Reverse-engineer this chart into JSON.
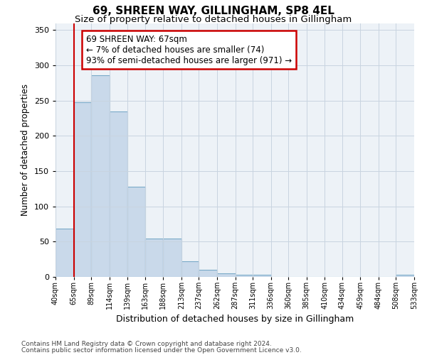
{
  "title1": "69, SHREEN WAY, GILLINGHAM, SP8 4EL",
  "title2": "Size of property relative to detached houses in Gillingham",
  "xlabel": "Distribution of detached houses by size in Gillingham",
  "ylabel": "Number of detached properties",
  "footnote1": "Contains HM Land Registry data © Crown copyright and database right 2024.",
  "footnote2": "Contains public sector information licensed under the Open Government Licence v3.0.",
  "bin_edges": [
    40,
    65,
    89,
    114,
    139,
    163,
    188,
    213,
    237,
    262,
    287,
    311,
    336,
    360,
    385,
    410,
    434,
    459,
    484,
    508,
    533
  ],
  "bin_labels": [
    "40sqm",
    "65sqm",
    "89sqm",
    "114sqm",
    "139sqm",
    "163sqm",
    "188sqm",
    "213sqm",
    "237sqm",
    "262sqm",
    "287sqm",
    "311sqm",
    "336sqm",
    "360sqm",
    "385sqm",
    "410sqm",
    "434sqm",
    "459sqm",
    "484sqm",
    "508sqm",
    "533sqm"
  ],
  "bar_heights": [
    68,
    248,
    286,
    235,
    128,
    54,
    54,
    22,
    10,
    5,
    3,
    3,
    0,
    0,
    0,
    0,
    0,
    0,
    0,
    3
  ],
  "bar_color": "#c9d9ea",
  "bar_edge_color": "#7aaac8",
  "red_line_x": 65,
  "ylim": [
    0,
    360
  ],
  "yticks": [
    0,
    50,
    100,
    150,
    200,
    250,
    300,
    350
  ],
  "annotation_text": "69 SHREEN WAY: 67sqm\n← 7% of detached houses are smaller (74)\n93% of semi-detached houses are larger (971) →",
  "annotation_box_color": "#ffffff",
  "annotation_box_edge": "#cc0000",
  "grid_color": "#c8d4e0",
  "background_color": "#edf2f7"
}
